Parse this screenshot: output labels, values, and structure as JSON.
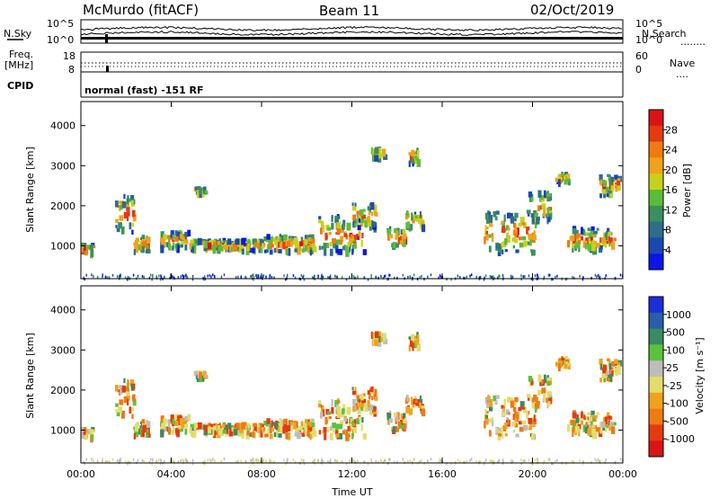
{
  "header": {
    "station": "McMurdo (fitACF)",
    "beam": "Beam 11",
    "date": "02/Oct/2019"
  },
  "top_panels": {
    "nsky_label": "N.Sky",
    "nsearch_label": "N.Search",
    "freq_label_1": "Freq.",
    "freq_label_2": "[MHz]",
    "nave_label": "Nave",
    "cpid_label": "CPID",
    "cpid_text": "normal (fast) -151 RF",
    "noise_ticks_left": [
      "10^5",
      "10^0"
    ],
    "noise_ticks_right": [
      "10^5",
      "10^0"
    ],
    "freq_ticks": [
      "18",
      "8"
    ],
    "nave_ticks": [
      "60",
      "0"
    ],
    "nsearch_line": "........",
    "nave_line": "...."
  },
  "chart_data": [
    {
      "type": "heatmap",
      "quantity": "Power",
      "ylabel": "Slant Range [km]",
      "ylim": [
        180,
        4600
      ],
      "yticks": [
        "1000",
        "2000",
        "3000",
        "4000"
      ],
      "xlim": [
        0,
        24
      ],
      "colorbar_label": "Power [dB]",
      "colorbar_ticks": [
        "4",
        "8",
        "12",
        "16",
        "20",
        "24",
        "28"
      ],
      "colorbar_colors": [
        "#0a16e8",
        "#1c47b3",
        "#2e6d8a",
        "#3a8f61",
        "#5cbc3a",
        "#c6d21a",
        "#f0a21c",
        "#f07a12",
        "#e43a12",
        "#d81414"
      ]
    },
    {
      "type": "heatmap",
      "quantity": "Velocity",
      "ylabel": "Slant Range [km]",
      "ylim": [
        180,
        4600
      ],
      "yticks": [
        "1000",
        "2000",
        "3000",
        "4000"
      ],
      "xlim": [
        0,
        24
      ],
      "xlabel": "Time UT",
      "xticks": [
        "00:00",
        "04:00",
        "08:00",
        "12:00",
        "16:00",
        "20:00",
        "00:00"
      ],
      "colorbar_label": "Velocity [m s⁻¹]",
      "colorbar_ticks": [
        "1000",
        "500",
        "100",
        "25",
        "-25",
        "-100",
        "-500",
        "-1000"
      ],
      "colorbar_colors": [
        "#1a2fd6",
        "#2a5ea8",
        "#3a8a62",
        "#5cc23c",
        "#bdbdbd",
        "#e2dd6a",
        "#f0a21c",
        "#f07a12",
        "#e43a12",
        "#d81414"
      ]
    }
  ]
}
